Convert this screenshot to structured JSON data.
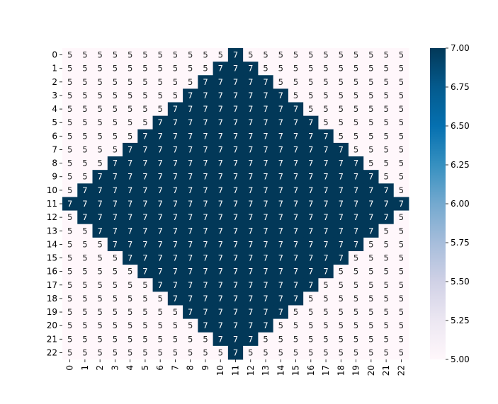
{
  "chart_data": {
    "type": "heatmap",
    "title": "",
    "xlabel": "",
    "ylabel": "",
    "x_categories": [
      "0",
      "1",
      "2",
      "3",
      "4",
      "5",
      "6",
      "7",
      "8",
      "9",
      "10",
      "11",
      "12",
      "13",
      "14",
      "15",
      "16",
      "17",
      "18",
      "19",
      "20",
      "21",
      "22"
    ],
    "y_categories": [
      "0",
      "1",
      "2",
      "3",
      "4",
      "5",
      "6",
      "7",
      "8",
      "9",
      "10",
      "11",
      "12",
      "13",
      "14",
      "15",
      "16",
      "17",
      "18",
      "19",
      "20",
      "21",
      "22"
    ],
    "values": [
      [
        5,
        5,
        5,
        5,
        5,
        5,
        5,
        5,
        5,
        5,
        5,
        7,
        5,
        5,
        5,
        5,
        5,
        5,
        5,
        5,
        5,
        5,
        5
      ],
      [
        5,
        5,
        5,
        5,
        5,
        5,
        5,
        5,
        5,
        5,
        7,
        7,
        7,
        5,
        5,
        5,
        5,
        5,
        5,
        5,
        5,
        5,
        5
      ],
      [
        5,
        5,
        5,
        5,
        5,
        5,
        5,
        5,
        5,
        7,
        7,
        7,
        7,
        7,
        5,
        5,
        5,
        5,
        5,
        5,
        5,
        5,
        5
      ],
      [
        5,
        5,
        5,
        5,
        5,
        5,
        5,
        5,
        7,
        7,
        7,
        7,
        7,
        7,
        7,
        5,
        5,
        5,
        5,
        5,
        5,
        5,
        5
      ],
      [
        5,
        5,
        5,
        5,
        5,
        5,
        5,
        7,
        7,
        7,
        7,
        7,
        7,
        7,
        7,
        7,
        5,
        5,
        5,
        5,
        5,
        5,
        5
      ],
      [
        5,
        5,
        5,
        5,
        5,
        5,
        7,
        7,
        7,
        7,
        7,
        7,
        7,
        7,
        7,
        7,
        7,
        5,
        5,
        5,
        5,
        5,
        5
      ],
      [
        5,
        5,
        5,
        5,
        5,
        7,
        7,
        7,
        7,
        7,
        7,
        7,
        7,
        7,
        7,
        7,
        7,
        7,
        5,
        5,
        5,
        5,
        5
      ],
      [
        5,
        5,
        5,
        5,
        7,
        7,
        7,
        7,
        7,
        7,
        7,
        7,
        7,
        7,
        7,
        7,
        7,
        7,
        7,
        5,
        5,
        5,
        5
      ],
      [
        5,
        5,
        5,
        7,
        7,
        7,
        7,
        7,
        7,
        7,
        7,
        7,
        7,
        7,
        7,
        7,
        7,
        7,
        7,
        7,
        5,
        5,
        5
      ],
      [
        5,
        5,
        7,
        7,
        7,
        7,
        7,
        7,
        7,
        7,
        7,
        7,
        7,
        7,
        7,
        7,
        7,
        7,
        7,
        7,
        7,
        5,
        5
      ],
      [
        5,
        7,
        7,
        7,
        7,
        7,
        7,
        7,
        7,
        7,
        7,
        7,
        7,
        7,
        7,
        7,
        7,
        7,
        7,
        7,
        7,
        7,
        5
      ],
      [
        7,
        7,
        7,
        7,
        7,
        7,
        7,
        7,
        7,
        7,
        7,
        7,
        7,
        7,
        7,
        7,
        7,
        7,
        7,
        7,
        7,
        7,
        7
      ],
      [
        5,
        7,
        7,
        7,
        7,
        7,
        7,
        7,
        7,
        7,
        7,
        7,
        7,
        7,
        7,
        7,
        7,
        7,
        7,
        7,
        7,
        7,
        5
      ],
      [
        5,
        5,
        7,
        7,
        7,
        7,
        7,
        7,
        7,
        7,
        7,
        7,
        7,
        7,
        7,
        7,
        7,
        7,
        7,
        7,
        7,
        5,
        5
      ],
      [
        5,
        5,
        5,
        7,
        7,
        7,
        7,
        7,
        7,
        7,
        7,
        7,
        7,
        7,
        7,
        7,
        7,
        7,
        7,
        7,
        5,
        5,
        5
      ],
      [
        5,
        5,
        5,
        5,
        7,
        7,
        7,
        7,
        7,
        7,
        7,
        7,
        7,
        7,
        7,
        7,
        7,
        7,
        7,
        5,
        5,
        5,
        5
      ],
      [
        5,
        5,
        5,
        5,
        5,
        7,
        7,
        7,
        7,
        7,
        7,
        7,
        7,
        7,
        7,
        7,
        7,
        7,
        5,
        5,
        5,
        5,
        5
      ],
      [
        5,
        5,
        5,
        5,
        5,
        5,
        7,
        7,
        7,
        7,
        7,
        7,
        7,
        7,
        7,
        7,
        7,
        5,
        5,
        5,
        5,
        5,
        5
      ],
      [
        5,
        5,
        5,
        5,
        5,
        5,
        5,
        7,
        7,
        7,
        7,
        7,
        7,
        7,
        7,
        7,
        5,
        5,
        5,
        5,
        5,
        5,
        5
      ],
      [
        5,
        5,
        5,
        5,
        5,
        5,
        5,
        5,
        7,
        7,
        7,
        7,
        7,
        7,
        7,
        5,
        5,
        5,
        5,
        5,
        5,
        5,
        5
      ],
      [
        5,
        5,
        5,
        5,
        5,
        5,
        5,
        5,
        5,
        7,
        7,
        7,
        7,
        7,
        5,
        5,
        5,
        5,
        5,
        5,
        5,
        5,
        5
      ],
      [
        5,
        5,
        5,
        5,
        5,
        5,
        5,
        5,
        5,
        5,
        7,
        7,
        7,
        5,
        5,
        5,
        5,
        5,
        5,
        5,
        5,
        5,
        5
      ],
      [
        5,
        5,
        5,
        5,
        5,
        5,
        5,
        5,
        5,
        5,
        5,
        7,
        5,
        5,
        5,
        5,
        5,
        5,
        5,
        5,
        5,
        5,
        5
      ]
    ],
    "annotations": true,
    "colorbar": {
      "range": [
        5.0,
        7.0
      ],
      "ticks": [
        "5.00",
        "5.25",
        "5.50",
        "5.75",
        "6.00",
        "6.25",
        "6.50",
        "6.75",
        "7.00"
      ],
      "colormap": "PuBu",
      "low_color": "#fff7fb",
      "high_color": "#023858"
    },
    "grid": false,
    "legend": "colorbar-right"
  }
}
